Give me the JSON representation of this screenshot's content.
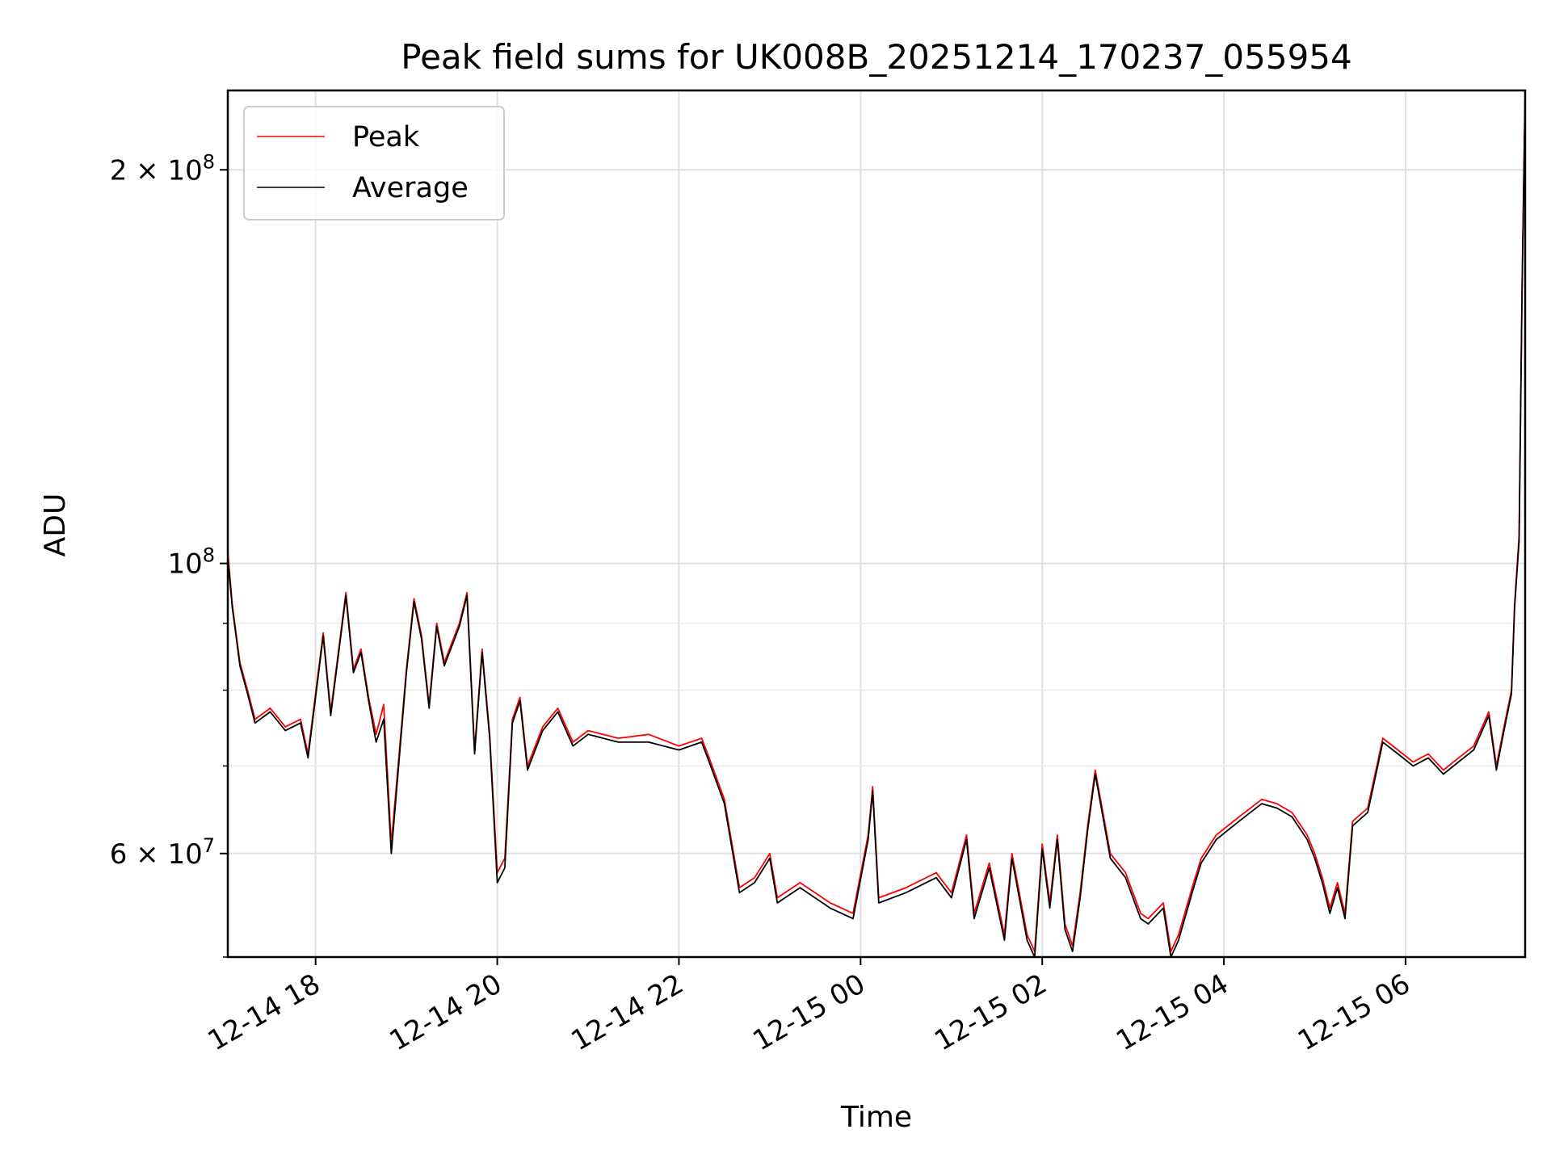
{
  "chart_data": {
    "type": "line",
    "title": "Peak field sums for UK008B_20251214_170237_055954",
    "xlabel": "Time",
    "ylabel": "ADU",
    "yscale": "log",
    "grid": true,
    "legend_position": "top-left",
    "x_range": [
      "2025-12-14 17:02",
      "2025-12-15 07:19"
    ],
    "ylim": [
      50000000,
      230000000
    ],
    "x_ticks": [
      "12-14 18",
      "12-14 20",
      "12-14 22",
      "12-15 00",
      "12-15 02",
      "12-15 04",
      "12-15 06"
    ],
    "y_ticks": [
      {
        "value": 60000000,
        "base": "6 × 10",
        "exp": "7"
      },
      {
        "value": 100000000,
        "base": "10",
        "exp": "8"
      },
      {
        "value": 200000000,
        "base": "2 × 10",
        "exp": "8"
      }
    ],
    "series": [
      {
        "name": "Peak",
        "color": "#ff0000",
        "points": [
          [
            "12-14 17:02",
            102000000
          ],
          [
            "12-14 17:05",
            93000000
          ],
          [
            "12-14 17:10",
            84000000
          ],
          [
            "12-14 17:15",
            80000000
          ],
          [
            "12-14 17:20",
            76000000
          ],
          [
            "12-14 17:30",
            77500000
          ],
          [
            "12-14 17:40",
            75000000
          ],
          [
            "12-14 17:50",
            76000000
          ],
          [
            "12-14 17:55",
            71500000
          ],
          [
            "12-14 18:05",
            88500000
          ],
          [
            "12-14 18:10",
            77000000
          ],
          [
            "12-14 18:20",
            95000000
          ],
          [
            "12-14 18:25",
            83000000
          ],
          [
            "12-14 18:30",
            86000000
          ],
          [
            "12-14 18:35",
            79000000
          ],
          [
            "12-14 18:40",
            74000000
          ],
          [
            "12-14 18:45",
            78000000
          ],
          [
            "12-14 18:50",
            61000000
          ],
          [
            "12-14 19:00",
            83000000
          ],
          [
            "12-14 19:05",
            94000000
          ],
          [
            "12-14 19:10",
            88000000
          ],
          [
            "12-14 19:15",
            78000000
          ],
          [
            "12-14 19:20",
            90000000
          ],
          [
            "12-14 19:25",
            84000000
          ],
          [
            "12-14 19:35",
            90000000
          ],
          [
            "12-14 19:40",
            95000000
          ],
          [
            "12-14 19:45",
            72000000
          ],
          [
            "12-14 19:50",
            86000000
          ],
          [
            "12-14 19:55",
            74000000
          ],
          [
            "12-14 20:00",
            58000000
          ],
          [
            "12-14 20:05",
            59500000
          ],
          [
            "12-14 20:10",
            76000000
          ],
          [
            "12-14 20:15",
            79000000
          ],
          [
            "12-14 20:20",
            70000000
          ],
          [
            "12-14 20:30",
            75000000
          ],
          [
            "12-14 20:40",
            77500000
          ],
          [
            "12-14 20:50",
            73000000
          ],
          [
            "12-14 21:00",
            74500000
          ],
          [
            "12-14 21:20",
            73500000
          ],
          [
            "12-14 21:40",
            74000000
          ],
          [
            "12-14 22:00",
            72500000
          ],
          [
            "12-14 22:15",
            73500000
          ],
          [
            "12-14 22:20",
            71000000
          ],
          [
            "12-14 22:30",
            66000000
          ],
          [
            "12-14 22:40",
            56500000
          ],
          [
            "12-14 22:50",
            57500000
          ],
          [
            "12-14 23:00",
            60000000
          ],
          [
            "12-14 23:05",
            55500000
          ],
          [
            "12-14 23:20",
            57000000
          ],
          [
            "12-14 23:40",
            55000000
          ],
          [
            "12-14 23:55",
            54000000
          ],
          [
            "12-15 00:05",
            62000000
          ],
          [
            "12-15 00:08",
            67500000
          ],
          [
            "12-15 00:12",
            55500000
          ],
          [
            "12-15 00:30",
            56500000
          ],
          [
            "12-15 00:50",
            58000000
          ],
          [
            "12-15 01:00",
            56000000
          ],
          [
            "12-15 01:10",
            62000000
          ],
          [
            "12-15 01:15",
            54000000
          ],
          [
            "12-15 01:25",
            59000000
          ],
          [
            "12-15 01:35",
            52000000
          ],
          [
            "12-15 01:40",
            60000000
          ],
          [
            "12-15 01:50",
            52000000
          ],
          [
            "12-15 01:55",
            50500000
          ],
          [
            "12-15 02:00",
            61000000
          ],
          [
            "12-15 02:05",
            55000000
          ],
          [
            "12-15 02:10",
            62000000
          ],
          [
            "12-15 02:15",
            53000000
          ],
          [
            "12-15 02:20",
            51000000
          ],
          [
            "12-15 02:25",
            56000000
          ],
          [
            "12-15 02:30",
            63000000
          ],
          [
            "12-15 02:35",
            69500000
          ],
          [
            "12-15 02:45",
            60000000
          ],
          [
            "12-15 02:55",
            58000000
          ],
          [
            "12-15 03:05",
            54000000
          ],
          [
            "12-15 03:10",
            53500000
          ],
          [
            "12-15 03:20",
            55000000
          ],
          [
            "12-15 03:25",
            50500000
          ],
          [
            "12-15 03:30",
            52000000
          ],
          [
            "12-15 03:40",
            57000000
          ],
          [
            "12-15 03:45",
            59500000
          ],
          [
            "12-15 03:55",
            62000000
          ],
          [
            "12-15 04:10",
            64000000
          ],
          [
            "12-15 04:25",
            66000000
          ],
          [
            "12-15 04:35",
            65500000
          ],
          [
            "12-15 04:45",
            64500000
          ],
          [
            "12-15 04:55",
            62000000
          ],
          [
            "12-15 05:00",
            60000000
          ],
          [
            "12-15 05:05",
            57500000
          ],
          [
            "12-15 05:10",
            54500000
          ],
          [
            "12-15 05:15",
            57000000
          ],
          [
            "12-15 05:20",
            54000000
          ],
          [
            "12-15 05:25",
            63500000
          ],
          [
            "12-15 05:35",
            65000000
          ],
          [
            "12-15 05:45",
            73500000
          ],
          [
            "12-15 05:55",
            72000000
          ],
          [
            "12-15 06:05",
            70500000
          ],
          [
            "12-15 06:15",
            71500000
          ],
          [
            "12-15 06:25",
            69500000
          ],
          [
            "12-15 06:35",
            71000000
          ],
          [
            "12-15 06:45",
            72500000
          ],
          [
            "12-15 06:55",
            77000000
          ],
          [
            "12-15 07:00",
            70000000
          ],
          [
            "12-15 07:05",
            75000000
          ],
          [
            "12-15 07:10",
            80000000
          ],
          [
            "12-15 07:12",
            93000000
          ],
          [
            "12-15 07:15",
            105000000
          ],
          [
            "12-15 07:17",
            165000000
          ],
          [
            "12-15 07:19",
            230000000
          ]
        ]
      },
      {
        "name": "Average",
        "color": "#000000",
        "points": [
          [
            "12-14 17:02",
            101000000
          ],
          [
            "12-14 17:05",
            92500000
          ],
          [
            "12-14 17:10",
            83500000
          ],
          [
            "12-14 17:15",
            79500000
          ],
          [
            "12-14 17:20",
            75500000
          ],
          [
            "12-14 17:30",
            77000000
          ],
          [
            "12-14 17:40",
            74500000
          ],
          [
            "12-14 17:50",
            75500000
          ],
          [
            "12-14 17:55",
            71000000
          ],
          [
            "12-14 18:05",
            88000000
          ],
          [
            "12-14 18:10",
            76500000
          ],
          [
            "12-14 18:20",
            94500000
          ],
          [
            "12-14 18:25",
            82500000
          ],
          [
            "12-14 18:30",
            85500000
          ],
          [
            "12-14 18:35",
            78500000
          ],
          [
            "12-14 18:40",
            73000000
          ],
          [
            "12-14 18:45",
            76000000
          ],
          [
            "12-14 18:50",
            60000000
          ],
          [
            "12-14 19:00",
            82500000
          ],
          [
            "12-14 19:05",
            93500000
          ],
          [
            "12-14 19:10",
            87500000
          ],
          [
            "12-14 19:15",
            77500000
          ],
          [
            "12-14 19:20",
            89500000
          ],
          [
            "12-14 19:25",
            83500000
          ],
          [
            "12-14 19:35",
            89500000
          ],
          [
            "12-14 19:40",
            94500000
          ],
          [
            "12-14 19:45",
            71500000
          ],
          [
            "12-14 19:50",
            85500000
          ],
          [
            "12-14 19:55",
            73500000
          ],
          [
            "12-14 20:00",
            57000000
          ],
          [
            "12-14 20:05",
            58500000
          ],
          [
            "12-14 20:10",
            75500000
          ],
          [
            "12-14 20:15",
            78500000
          ],
          [
            "12-14 20:20",
            69500000
          ],
          [
            "12-14 20:30",
            74500000
          ],
          [
            "12-14 20:40",
            77000000
          ],
          [
            "12-14 20:50",
            72500000
          ],
          [
            "12-14 21:00",
            74000000
          ],
          [
            "12-14 21:20",
            73000000
          ],
          [
            "12-14 21:40",
            73000000
          ],
          [
            "12-14 22:00",
            72000000
          ],
          [
            "12-14 22:15",
            73000000
          ],
          [
            "12-14 22:20",
            70500000
          ],
          [
            "12-14 22:30",
            65500000
          ],
          [
            "12-14 22:40",
            56000000
          ],
          [
            "12-14 22:50",
            57000000
          ],
          [
            "12-14 23:00",
            59500000
          ],
          [
            "12-14 23:05",
            55000000
          ],
          [
            "12-14 23:20",
            56500000
          ],
          [
            "12-14 23:40",
            54500000
          ],
          [
            "12-14 23:55",
            53500000
          ],
          [
            "12-15 00:05",
            61500000
          ],
          [
            "12-15 00:08",
            67000000
          ],
          [
            "12-15 00:12",
            55000000
          ],
          [
            "12-15 00:30",
            56000000
          ],
          [
            "12-15 00:50",
            57500000
          ],
          [
            "12-15 01:00",
            55500000
          ],
          [
            "12-15 01:10",
            61500000
          ],
          [
            "12-15 01:15",
            53500000
          ],
          [
            "12-15 01:25",
            58500000
          ],
          [
            "12-15 01:35",
            51500000
          ],
          [
            "12-15 01:40",
            59500000
          ],
          [
            "12-15 01:50",
            51500000
          ],
          [
            "12-15 01:55",
            50000000
          ],
          [
            "12-15 02:00",
            60500000
          ],
          [
            "12-15 02:05",
            54500000
          ],
          [
            "12-15 02:10",
            61500000
          ],
          [
            "12-15 02:15",
            52500000
          ],
          [
            "12-15 02:20",
            50500000
          ],
          [
            "12-15 02:25",
            55500000
          ],
          [
            "12-15 02:30",
            62500000
          ],
          [
            "12-15 02:35",
            69000000
          ],
          [
            "12-15 02:45",
            59500000
          ],
          [
            "12-15 02:55",
            57500000
          ],
          [
            "12-15 03:05",
            53500000
          ],
          [
            "12-15 03:10",
            53000000
          ],
          [
            "12-15 03:20",
            54500000
          ],
          [
            "12-15 03:25",
            50000000
          ],
          [
            "12-15 03:30",
            51500000
          ],
          [
            "12-15 03:40",
            56500000
          ],
          [
            "12-15 03:45",
            59000000
          ],
          [
            "12-15 03:55",
            61500000
          ],
          [
            "12-15 04:10",
            63500000
          ],
          [
            "12-15 04:25",
            65500000
          ],
          [
            "12-15 04:35",
            65000000
          ],
          [
            "12-15 04:45",
            64000000
          ],
          [
            "12-15 04:55",
            61500000
          ],
          [
            "12-15 05:00",
            59500000
          ],
          [
            "12-15 05:05",
            57000000
          ],
          [
            "12-15 05:10",
            54000000
          ],
          [
            "12-15 05:15",
            56500000
          ],
          [
            "12-15 05:20",
            53500000
          ],
          [
            "12-15 05:25",
            63000000
          ],
          [
            "12-15 05:35",
            64500000
          ],
          [
            "12-15 05:45",
            73000000
          ],
          [
            "12-15 05:55",
            71500000
          ],
          [
            "12-15 06:05",
            70000000
          ],
          [
            "12-15 06:15",
            71000000
          ],
          [
            "12-15 06:25",
            69000000
          ],
          [
            "12-15 06:35",
            70500000
          ],
          [
            "12-15 06:45",
            72000000
          ],
          [
            "12-15 06:55",
            76500000
          ],
          [
            "12-15 07:00",
            69500000
          ],
          [
            "12-15 07:05",
            74500000
          ],
          [
            "12-15 07:10",
            79500000
          ],
          [
            "12-15 07:12",
            92500000
          ],
          [
            "12-15 07:15",
            104000000
          ],
          [
            "12-15 07:17",
            164000000
          ],
          [
            "12-15 07:19",
            229000000
          ]
        ]
      }
    ]
  }
}
